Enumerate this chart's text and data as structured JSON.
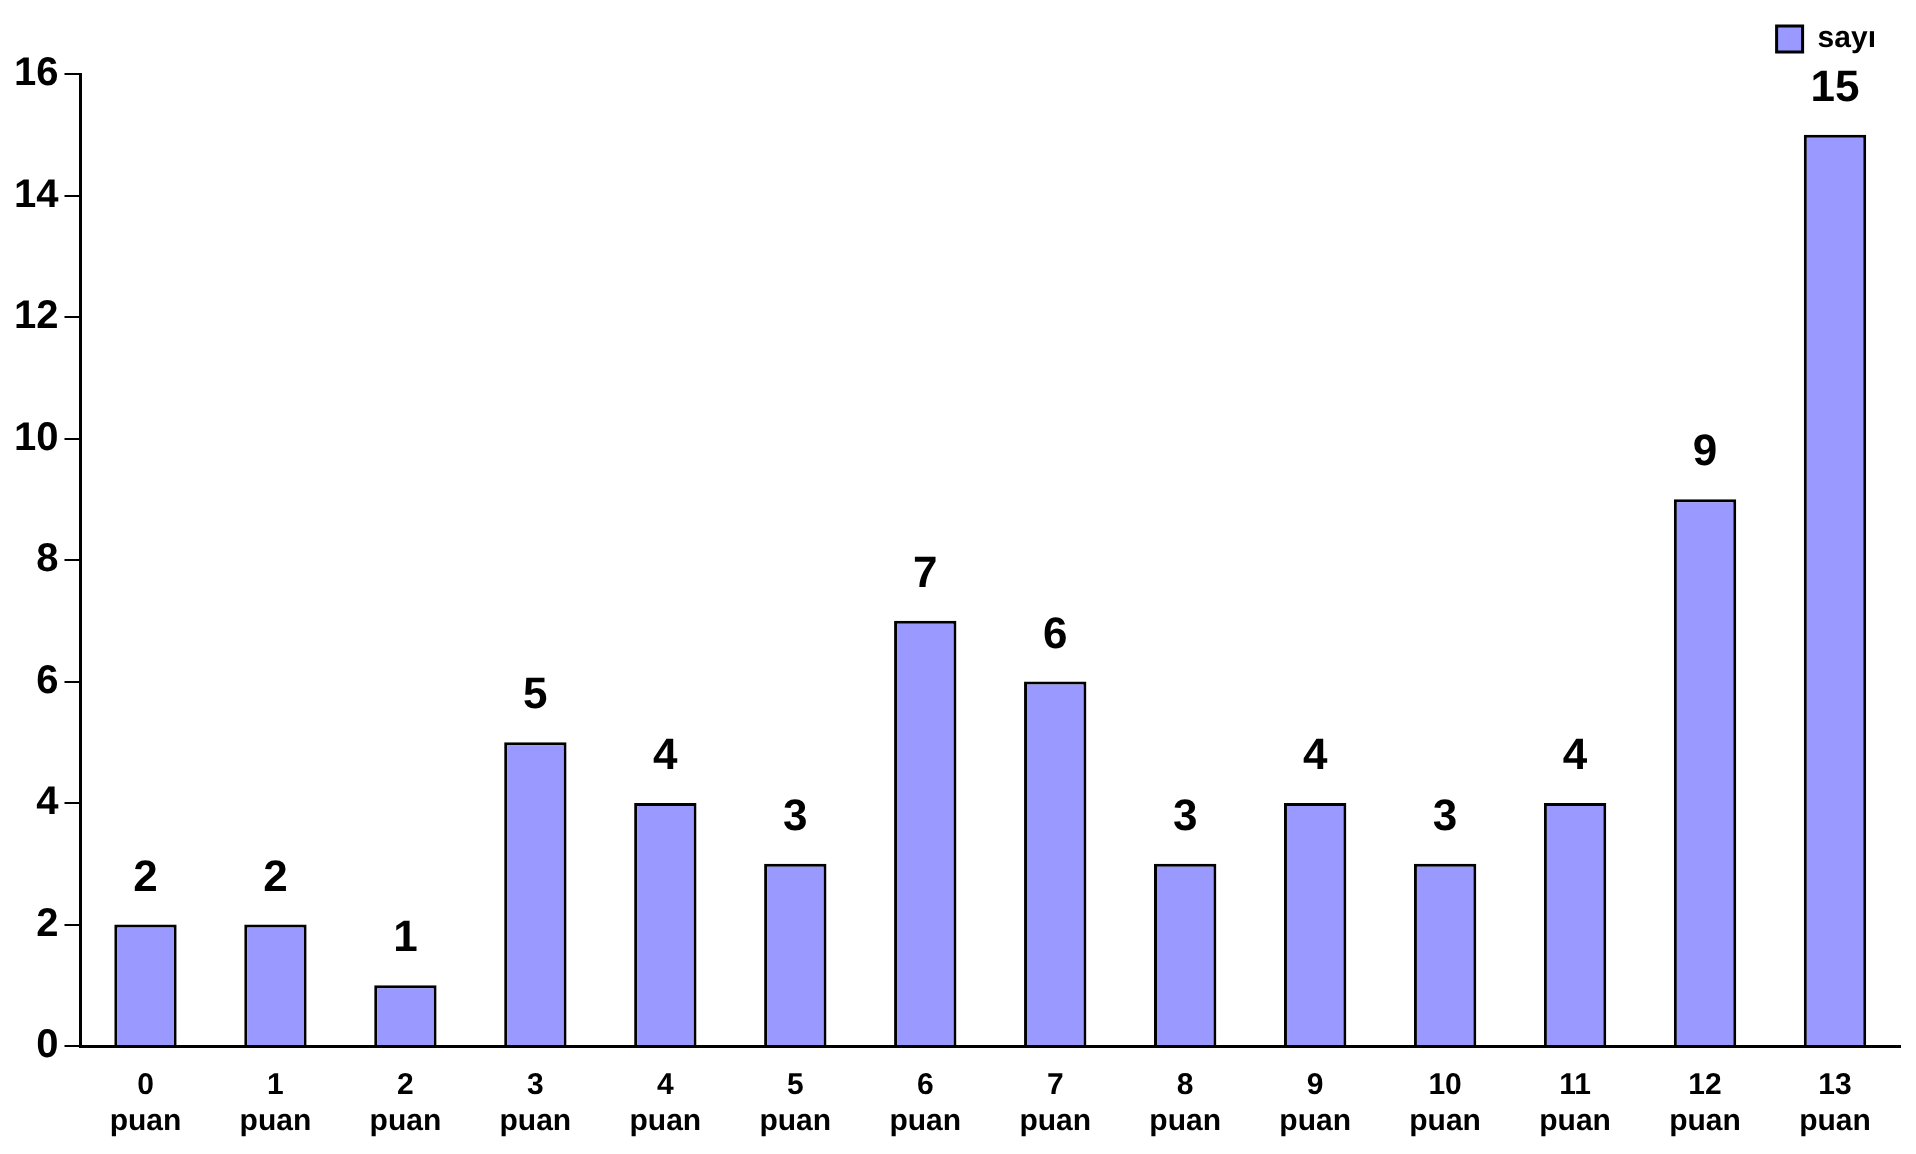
{
  "chart_data": {
    "type": "bar",
    "categories": [
      "0 puan",
      "1 puan",
      "2 puan",
      "3 puan",
      "4 puan",
      "5 puan",
      "6 puan",
      "7 puan",
      "8 puan",
      "9 puan",
      "10 puan",
      "11 puan",
      "12 puan",
      "13 puan"
    ],
    "series": [
      {
        "name": "sayı",
        "color": "#9999ff",
        "values": [
          2,
          2,
          1,
          5,
          4,
          3,
          7,
          6,
          3,
          4,
          3,
          4,
          9,
          15
        ]
      }
    ],
    "ylim": [
      0,
      16
    ],
    "yticks": [
      0,
      2,
      4,
      6,
      8,
      10,
      12,
      14,
      16
    ],
    "grid": false,
    "legend": "top right",
    "data_labels": true
  }
}
